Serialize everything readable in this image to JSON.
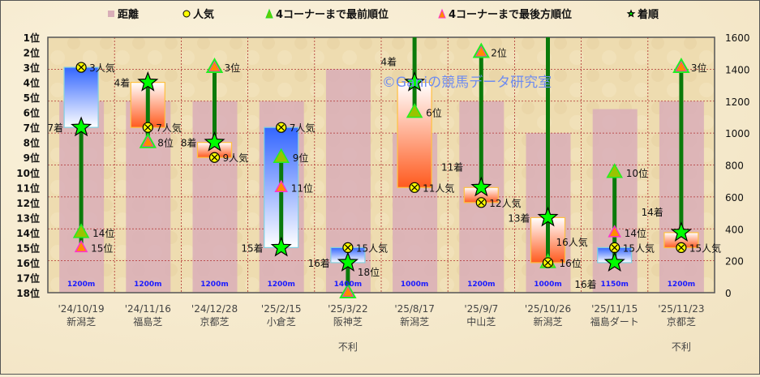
{
  "chart_data": {
    "type": "bar+range+scatter",
    "legend": {
      "placement": "top",
      "items": [
        {
          "key": "distance",
          "label": "距離",
          "color": "#d9aeb8"
        },
        {
          "key": "popularity",
          "label": "人気",
          "color": "#ffff00"
        },
        {
          "key": "first_corner",
          "label": "4コーナーまで最前順位",
          "color": "#99cc00"
        },
        {
          "key": "last_corner",
          "label": "4コーナーまで最後方順位",
          "color": "#ff8c00"
        },
        {
          "key": "finish",
          "label": "着順",
          "color": "#00ff00"
        }
      ]
    },
    "left_axis": {
      "ticks": [
        "1位",
        "2位",
        "3位",
        "4位",
        "5位",
        "6位",
        "7位",
        "8位",
        "9位",
        "10位",
        "11位",
        "12位",
        "13位",
        "14位",
        "15位",
        "16位",
        "17位",
        "18位"
      ],
      "range": [
        1,
        18
      ],
      "reversed": true
    },
    "right_axis": {
      "ticks": [
        "0",
        "200",
        "400",
        "600",
        "800",
        "1000",
        "1200",
        "1400",
        "1600"
      ],
      "range": [
        0,
        1600
      ]
    },
    "grid": true,
    "watermark": "©Ganiの競馬データ研究室",
    "colors": {
      "better_than_popularity": "#ff5a1e",
      "worse_than_popularity": "#3366ff",
      "line": "#0a7a0a",
      "distance_bar": "#d9aeb8",
      "distance_text": "#1a1aff"
    },
    "races": [
      {
        "date": "'24/10/19",
        "venue": "新潟芝",
        "distance": 1200,
        "distance_label": "1200m",
        "popularity": 3,
        "finish": 7,
        "first_corner": 14,
        "last_corner": 15,
        "note": ""
      },
      {
        "date": "'24/11/16",
        "venue": "福島芝",
        "distance": 1200,
        "distance_label": "1200m",
        "popularity": 7,
        "finish": 4,
        "first_corner": 8,
        "last_corner": 8,
        "note": ""
      },
      {
        "date": "'24/12/28",
        "venue": "京都芝",
        "distance": 1200,
        "distance_label": "1200m",
        "popularity": 9,
        "finish": 8,
        "first_corner": 3,
        "last_corner": 3,
        "note": ""
      },
      {
        "date": "'25/2/15",
        "venue": "小倉芝",
        "distance": 1200,
        "distance_label": "1200m",
        "popularity": 7,
        "finish": 15,
        "first_corner": 9,
        "last_corner": 11,
        "note": ""
      },
      {
        "date": "'25/3/22",
        "venue": "阪神芝",
        "distance": 1400,
        "distance_label": "1400m",
        "popularity": 15,
        "finish": 16,
        "first_corner": 18,
        "last_corner": 18,
        "note": "不利"
      },
      {
        "date": "'25/8/17",
        "venue": "新潟芝",
        "distance": 1000,
        "distance_label": "1000m",
        "popularity": 11,
        "finish": 4,
        "first_corner": 6,
        "last_corner": null,
        "note": ""
      },
      {
        "date": "'25/9/7",
        "venue": "中山芝",
        "distance": 1200,
        "distance_label": "1200m",
        "popularity": 12,
        "finish": 11,
        "first_corner": 2,
        "last_corner": 2,
        "note": ""
      },
      {
        "date": "'25/10/26",
        "venue": "新潟芝",
        "distance": 1000,
        "distance_label": "1000m",
        "popularity": 16,
        "finish": 13,
        "first_corner": 16,
        "last_corner": null,
        "note": ""
      },
      {
        "date": "'25/11/15",
        "venue": "福島ダート",
        "distance": 1150,
        "distance_label": "1150m",
        "popularity": 15,
        "finish": 16,
        "first_corner": 10,
        "last_corner": 14,
        "note": ""
      },
      {
        "date": "'25/11/23",
        "venue": "京都芝",
        "distance": 1200,
        "distance_label": "1200m",
        "popularity": 15,
        "finish": 14,
        "first_corner": 3,
        "last_corner": 3,
        "note": "不利"
      }
    ],
    "label_suffix": {
      "popularity": "人気",
      "finish": "着",
      "corner": "位"
    }
  }
}
